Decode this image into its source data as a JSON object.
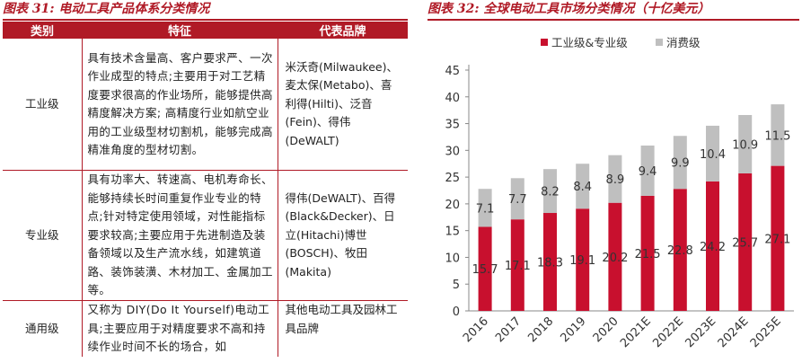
{
  "left_figure": {
    "title": "图表 31: 电动工具产品体系分类情况",
    "headers": [
      "类别",
      "特征",
      "代表品牌"
    ],
    "rows": [
      {
        "category": "工业级",
        "features": "具有技术含量高、客户要求严、一次作业成型的特点;主要用于对工艺精度要求很高的作业场所，能够提供高精度解决方案; 高精度行业如航空业用的工业级型材切割机，能够完成高精准角度的型材切割。",
        "brands": "米沃奇(Milwaukee)、麦太保(Metabo)、喜利得(Hilti)、泛音(Fein)、得伟(DeWALT)"
      },
      {
        "category": "专业级",
        "features": "具有功率大、转速高、电机寿命长、能够持续长时间重复作业专业的特点;针对特定使用领域，对性能指标要求较高;主要应用于先进制造及装备领域以及生产流水线，如建筑道路、装饰装潢、木材加工、金属加工等。",
        "brands": "得伟(DeWALT)、百得(Black&Decker)、日立(Hitachi)博世(BOSCH)、牧田(Makita)"
      },
      {
        "category": "通用级",
        "features": "又称为 DIY(Do It Yourself)电动工具;主要应用于对精度要求不高和持续作业时间不长的场合，如",
        "brands": "其他电动工具及园林工具品牌"
      }
    ]
  },
  "chart_data": {
    "type": "bar",
    "stacked": true,
    "title": "图表 32: 全球电动工具市场分类情况（十亿美元）",
    "categories": [
      "2016",
      "2017",
      "2018",
      "2019",
      "2020",
      "2021E",
      "2022E",
      "2023E",
      "2024E",
      "2025E"
    ],
    "series": [
      {
        "name": "工业级&专业级",
        "color": "#c8102e",
        "values": [
          15.7,
          17.1,
          18.3,
          19.1,
          20.2,
          21.5,
          22.8,
          24.2,
          25.7,
          27.1
        ]
      },
      {
        "name": "消费级",
        "color": "#bfbfbf",
        "values": [
          7.1,
          7.7,
          8.2,
          8.4,
          8.9,
          9.4,
          9.9,
          10.4,
          10.9,
          11.5
        ]
      }
    ],
    "ylim": [
      0,
      45
    ],
    "yticks": [
      0,
      5,
      10,
      15,
      20,
      25,
      30,
      35,
      40,
      45
    ],
    "legend_position": "top",
    "grid": false
  },
  "colors": {
    "accent": "#b01a26"
  }
}
